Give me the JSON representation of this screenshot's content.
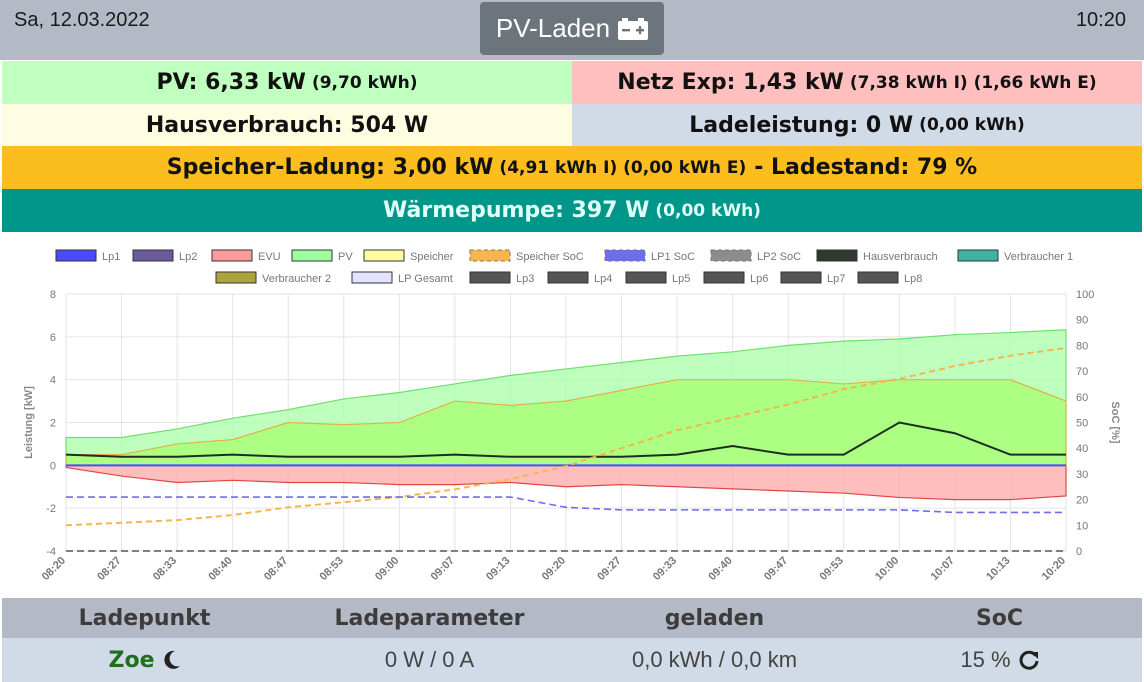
{
  "header": {
    "date": "Sa, 12.03.2022",
    "time": "10:20",
    "mode_label": "PV-Laden",
    "mode_icon": "battery-icon"
  },
  "stats": {
    "pv": {
      "main": "PV: 6,33 kW",
      "sub": "(9,70 kWh)"
    },
    "netz": {
      "main": "Netz Exp: 1,43 kW",
      "sub": "(7,38 kWh I) (1,66 kWh E)"
    },
    "haus": {
      "main": "Hausverbrauch: 504 W"
    },
    "lade": {
      "main": "Ladeleistung: 0 W",
      "sub": "(0,00 kWh)"
    },
    "speicher": {
      "main": "Speicher-Ladung: 3,00 kW",
      "sub": "(4,91 kWh I) (0,00 kWh E)",
      "tail": "- Ladestand: 79 %"
    },
    "wp": {
      "main": "Wärmepumpe: 397 W",
      "sub": "(0,00 kWh)"
    }
  },
  "colors": {
    "pv": "#bfffbf",
    "netz": "#ffbfbf",
    "haus": "#fffde1",
    "lade": "#d1dae7",
    "speicher": "#fcbe1e",
    "wp": "#00968a",
    "header": "#b4b9c6",
    "mode_button": "#6c747c"
  },
  "chart_data": {
    "type": "line",
    "x": [
      "08:20",
      "08:27",
      "08:33",
      "08:40",
      "08:47",
      "08:53",
      "09:00",
      "09:07",
      "09:13",
      "09:20",
      "09:27",
      "09:33",
      "09:40",
      "09:47",
      "09:53",
      "10:00",
      "10:07",
      "10:13",
      "10:20"
    ],
    "ylabel": "Leistung [kW]",
    "y2label": "SoC [%]",
    "ylim": [
      -4,
      8
    ],
    "y2lim": [
      0,
      100
    ],
    "yticks": [
      "8",
      "6",
      "4",
      "2",
      "0",
      "-2",
      "-4"
    ],
    "y2ticks": [
      "100",
      "90",
      "80",
      "70",
      "60",
      "50",
      "40",
      "30",
      "20",
      "10",
      "0"
    ],
    "grid": true,
    "legend_position": "top",
    "legend": [
      {
        "name": "Lp1",
        "color": "#4a4aff",
        "style": "solid"
      },
      {
        "name": "Lp2",
        "color": "#6b5b9a",
        "style": "solid"
      },
      {
        "name": "EVU",
        "color": "#ff9b9b",
        "style": "solid"
      },
      {
        "name": "PV",
        "color": "#9dff9d",
        "style": "solid"
      },
      {
        "name": "Speicher",
        "color": "#fffca0",
        "style": "solid"
      },
      {
        "name": "Speicher SoC",
        "color": "#f7b54a",
        "style": "dashed"
      },
      {
        "name": "LP1 SoC",
        "color": "#6d6df0",
        "style": "dashed"
      },
      {
        "name": "LP2 SoC",
        "color": "#8c8c8c",
        "style": "dashed"
      },
      {
        "name": "Hausverbrauch",
        "color": "#2e3a2e",
        "style": "solid"
      },
      {
        "name": "Verbraucher 1",
        "color": "#3fb3a3",
        "style": "solid"
      },
      {
        "name": "Verbraucher 2",
        "color": "#a8a53c",
        "style": "solid"
      },
      {
        "name": "LP Gesamt",
        "color": "#e3e3ff",
        "style": "solid"
      },
      {
        "name": "Lp3",
        "color": "#555555",
        "style": "solid"
      },
      {
        "name": "Lp4",
        "color": "#555555",
        "style": "solid"
      },
      {
        "name": "Lp5",
        "color": "#555555",
        "style": "solid"
      },
      {
        "name": "Lp6",
        "color": "#555555",
        "style": "solid"
      },
      {
        "name": "Lp7",
        "color": "#555555",
        "style": "solid"
      },
      {
        "name": "Lp8",
        "color": "#555555",
        "style": "solid"
      }
    ],
    "series": [
      {
        "name": "PV",
        "axis": "y",
        "values": [
          1.3,
          1.3,
          1.7,
          2.2,
          2.6,
          3.1,
          3.4,
          3.8,
          4.2,
          4.5,
          4.8,
          5.1,
          5.3,
          5.6,
          5.8,
          5.9,
          6.1,
          6.2,
          6.33
        ]
      },
      {
        "name": "EVU",
        "axis": "y",
        "values": [
          -0.1,
          -0.5,
          -0.8,
          -0.7,
          -0.8,
          -0.8,
          -0.9,
          -0.9,
          -0.8,
          -1.0,
          -0.9,
          -1.0,
          -1.1,
          -1.2,
          -1.3,
          -1.5,
          -1.6,
          -1.6,
          -1.43
        ]
      },
      {
        "name": "Speicher",
        "axis": "y",
        "values": [
          0.5,
          0.5,
          1.0,
          1.2,
          2.0,
          1.9,
          2.0,
          3.0,
          2.8,
          3.0,
          3.5,
          4.0,
          4.0,
          4.0,
          3.8,
          4.0,
          4.0,
          4.0,
          3.0
        ]
      },
      {
        "name": "Hausverbrauch",
        "axis": "y",
        "values": [
          0.5,
          0.4,
          0.4,
          0.5,
          0.4,
          0.4,
          0.4,
          0.5,
          0.4,
          0.4,
          0.4,
          0.5,
          0.9,
          0.5,
          0.5,
          2.0,
          1.5,
          0.5,
          0.5
        ]
      },
      {
        "name": "Lp1",
        "axis": "y",
        "values": [
          0,
          0,
          0,
          0,
          0,
          0,
          0,
          0,
          0,
          0,
          0,
          0,
          0,
          0,
          0,
          0,
          0,
          0,
          0
        ]
      },
      {
        "name": "Speicher SoC",
        "axis": "y2",
        "values": [
          10,
          11,
          12,
          14,
          17,
          19,
          21,
          24,
          28,
          33,
          40,
          47,
          52,
          57,
          63,
          67,
          72,
          76,
          79
        ]
      },
      {
        "name": "LP1 SoC",
        "axis": "y2",
        "values": [
          21,
          21,
          21,
          21,
          21,
          21,
          21,
          21,
          21,
          17,
          16,
          16,
          16,
          16,
          16,
          16,
          15,
          15,
          15
        ]
      },
      {
        "name": "LP2 SoC",
        "axis": "y2",
        "values": [
          0,
          0,
          0,
          0,
          0,
          0,
          0,
          0,
          0,
          0,
          0,
          0,
          0,
          0,
          0,
          0,
          0,
          0,
          0
        ]
      }
    ]
  },
  "table": {
    "headers": [
      "Ladepunkt",
      "Ladeparameter",
      "geladen",
      "SoC"
    ],
    "row": {
      "ladepunkt": "Zoe",
      "ladepunkt_icon": "moon-icon",
      "parameter": "0 W / 0 A",
      "geladen": "0,0 kWh / 0,0 km",
      "soc": "15 %",
      "soc_icon": "refresh-icon"
    }
  }
}
